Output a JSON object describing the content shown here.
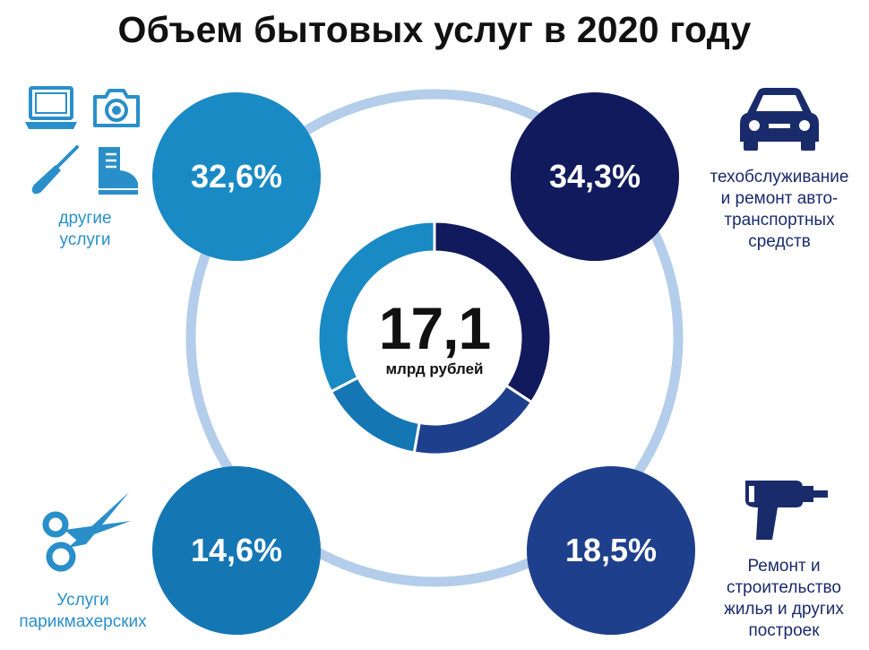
{
  "title": "Объем бытовых услуг в 2020 году",
  "center": {
    "value": "17,1",
    "unit": "млрд рублей"
  },
  "colors": {
    "ring": "#b3cdea",
    "other": "#1a8ac4",
    "auto": "#121a5e",
    "hair": "#1576b4",
    "repair": "#1e3f8c",
    "label_light": "#2a8fc9",
    "label_dark": "#1a2b6c"
  },
  "icons": {
    "other": [
      "laptop-icon",
      "camera-icon",
      "screwdriver-icon",
      "boot-icon"
    ],
    "auto": "car-icon",
    "hair": "scissors-icon",
    "repair": "drill-icon"
  },
  "chart_data": {
    "type": "pie",
    "title": "Объем бытовых услуг в 2020 году",
    "total": "17,1 млрд рублей",
    "series": [
      {
        "key": "auto",
        "value": 34.3,
        "value_label": "34,3%",
        "label": [
          "техобслуживание",
          "и ремонт авто-",
          "транспортных",
          "средств"
        ],
        "color": "#121a5e"
      },
      {
        "key": "repair",
        "value": 18.5,
        "value_label": "18,5%",
        "label": [
          "Ремонт и",
          "строительство",
          "жилья и других",
          "построек"
        ],
        "color": "#1e3f8c"
      },
      {
        "key": "hair",
        "value": 14.6,
        "value_label": "14,6%",
        "label": [
          "Услуги",
          "парикмахерских"
        ],
        "color": "#1576b4"
      },
      {
        "key": "other",
        "value": 32.6,
        "value_label": "32,6%",
        "label": [
          "другие",
          "услуги"
        ],
        "color": "#1a8ac4"
      }
    ]
  }
}
